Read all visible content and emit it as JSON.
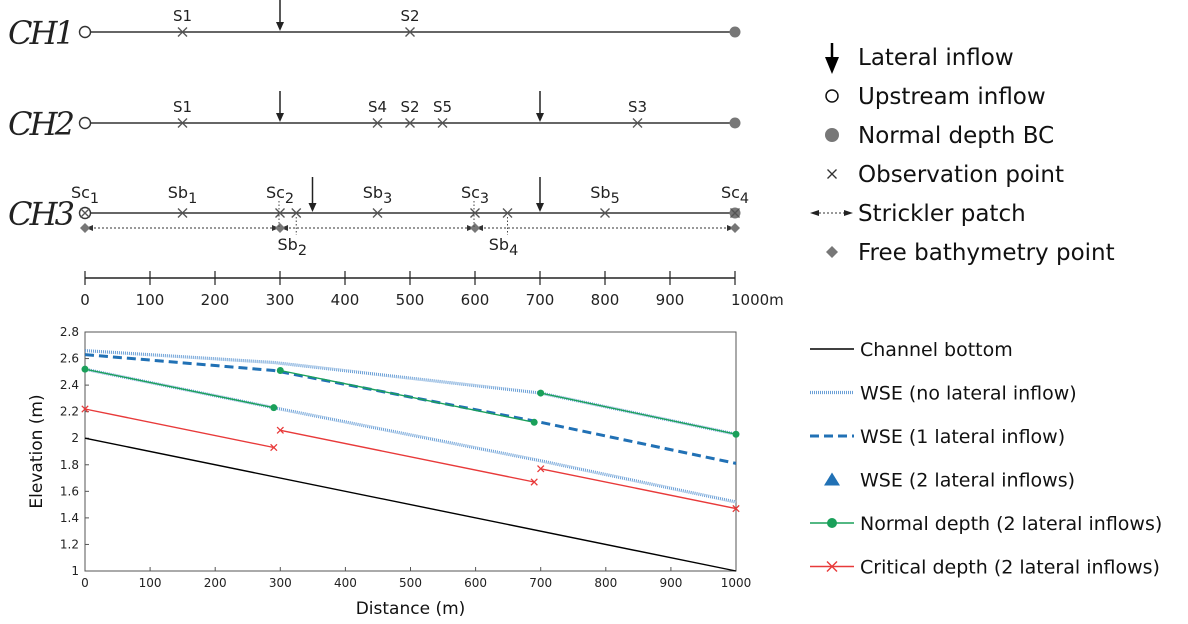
{
  "schematic": {
    "channels": [
      {
        "name": "CH1",
        "points": [
          {
            "x": 150,
            "label": "S1"
          },
          {
            "x": 500,
            "label": "S2"
          }
        ],
        "inflows": [
          300
        ]
      },
      {
        "name": "CH2",
        "points": [
          {
            "x": 150,
            "label": "S1"
          },
          {
            "x": 450,
            "label": "S4"
          },
          {
            "x": 500,
            "label": "S2"
          },
          {
            "x": 550,
            "label": "S5"
          },
          {
            "x": 850,
            "label": "S3"
          }
        ],
        "inflows": [
          300,
          700
        ]
      },
      {
        "name": "CH3",
        "points_above": [
          {
            "x": 0,
            "base": "Sc",
            "sub": "1"
          },
          {
            "x": 150,
            "base": "Sb",
            "sub": "1"
          },
          {
            "x": 300,
            "base": "Sc",
            "sub": "2"
          },
          {
            "x": 450,
            "base": "Sb",
            "sub": "3"
          },
          {
            "x": 600,
            "base": "Sc",
            "sub": "3"
          },
          {
            "x": 800,
            "base": "Sb",
            "sub": "5"
          },
          {
            "x": 1000,
            "base": "Sc",
            "sub": "4"
          }
        ],
        "points_below": [
          {
            "x": 325,
            "base": "Sb",
            "sub": "2"
          },
          {
            "x": 650,
            "base": "Sb",
            "sub": "4"
          }
        ],
        "inflows": [
          350,
          700
        ],
        "patch_bounds": [
          0,
          300,
          600,
          1000
        ],
        "bathymetry_points": [
          0,
          300,
          600,
          1000
        ]
      }
    ],
    "axis": {
      "ticks": [
        "0",
        "100",
        "200",
        "300",
        "400",
        "500",
        "600",
        "700",
        "800",
        "900"
      ],
      "end_label": "1000m"
    },
    "legend": [
      {
        "symbol": "arrow",
        "label": "Lateral inflow"
      },
      {
        "symbol": "open-circle",
        "label": "Upstream inflow"
      },
      {
        "symbol": "filled-circle",
        "label": "Normal depth BC"
      },
      {
        "symbol": "cross",
        "label": "Observation point"
      },
      {
        "symbol": "double-arrow",
        "label": "Strickler patch"
      },
      {
        "symbol": "diamond",
        "label": "Free bathymetry point"
      }
    ]
  },
  "chart_data": {
    "type": "line",
    "xlabel": "Distance (m)",
    "ylabel": "Elevation (m)",
    "xlim": [
      0,
      1000
    ],
    "ylim": [
      1,
      2.8
    ],
    "xticks": [
      "0",
      "100",
      "200",
      "300",
      "400",
      "500",
      "600",
      "700",
      "800",
      "900",
      "1000"
    ],
    "yticks": [
      "1",
      "1.2",
      "1.4",
      "1.6",
      "1.8",
      "2",
      "2.2",
      "2.4",
      "2.6",
      "2.8"
    ],
    "grid": false,
    "legend_position": "right",
    "series": [
      {
        "name": "Channel bottom",
        "color": "#000000",
        "style": "solid",
        "x": [
          0,
          1000
        ],
        "y": [
          2.0,
          1.0
        ]
      },
      {
        "name": "WSE (no lateral inflow)",
        "color": "#6a9fd6",
        "style": "dotted",
        "x": [
          0,
          290,
          700,
          1000
        ],
        "y": [
          2.52,
          2.23,
          1.83,
          1.52
        ]
      },
      {
        "name": "WSE (1 lateral inflow)",
        "color": "#2171b5",
        "style": "dashed",
        "x": [
          0,
          290,
          700,
          1000
        ],
        "y": [
          2.63,
          2.51,
          2.12,
          1.81
        ]
      },
      {
        "name": "WSE (2 lateral inflows)",
        "color": "#6a9fd6",
        "style": "dotted",
        "marker": "triangle",
        "x": [
          0,
          290,
          700,
          1000
        ],
        "y": [
          2.66,
          2.57,
          2.34,
          2.03
        ]
      },
      {
        "name": "Normal depth (2 lateral inflows)",
        "color": "#1aa05a",
        "style": "solid",
        "marker": "circle",
        "segments": [
          {
            "x": [
              0,
              290
            ],
            "y": [
              2.52,
              2.23
            ]
          },
          {
            "x": [
              300,
              690
            ],
            "y": [
              2.51,
              2.12
            ]
          },
          {
            "x": [
              700,
              1000
            ],
            "y": [
              2.34,
              2.03
            ]
          }
        ]
      },
      {
        "name": "Critical depth (2 lateral inflows)",
        "color": "#e83a3a",
        "style": "solid",
        "marker": "x",
        "segments": [
          {
            "x": [
              0,
              290
            ],
            "y": [
              2.22,
              1.93
            ]
          },
          {
            "x": [
              300,
              690
            ],
            "y": [
              2.06,
              1.67
            ]
          },
          {
            "x": [
              700,
              1000
            ],
            "y": [
              1.77,
              1.47
            ]
          }
        ]
      }
    ]
  }
}
